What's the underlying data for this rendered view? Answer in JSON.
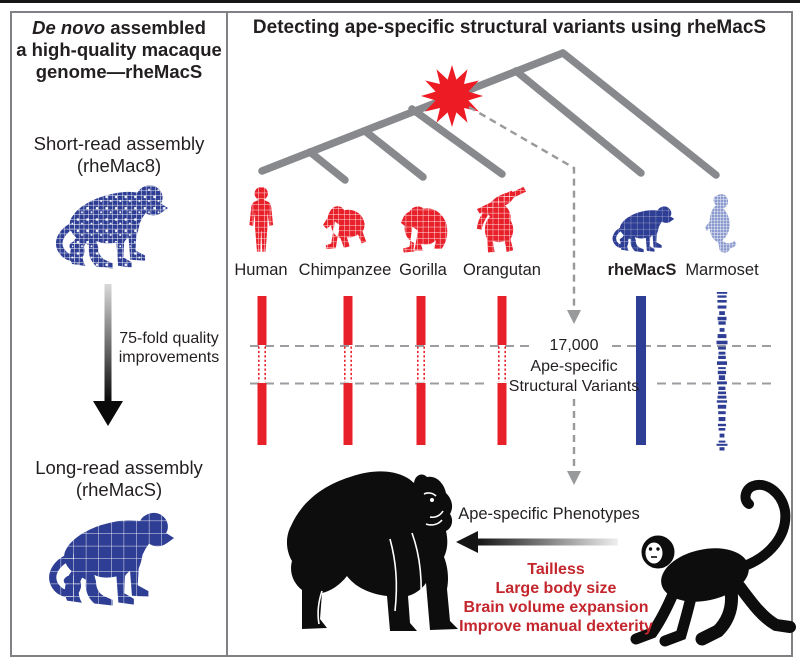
{
  "left_panel": {
    "title": {
      "italic_part": "De novo",
      "rest_line1": " assembled",
      "line2": "a high-quality macaque",
      "line3": "genome—rheMacS"
    },
    "short_read": {
      "line1": "Short-read assembly",
      "line2": "(rheMac8)"
    },
    "arrow_note": {
      "line1": "75-fold quality",
      "line2": "improvements"
    },
    "long_read": {
      "line1": "Long-read assembly",
      "line2": "(rheMacS)"
    }
  },
  "right_panel": {
    "title": "Detecting ape-specific structural variants using rheMacS",
    "species": [
      {
        "label": "Human"
      },
      {
        "label": "Chimpanzee"
      },
      {
        "label": "Gorilla"
      },
      {
        "label": "Orangutan"
      },
      {
        "label": "rheMacS"
      },
      {
        "label": "Marmoset"
      }
    ],
    "sv_annotation": {
      "line1": "17,000",
      "line2": "Ape-specific",
      "line3": "Structural Variants"
    },
    "phenotypes_title": "Ape-specific Phenotypes",
    "phenotypes": [
      "Tailless",
      "Large body size",
      "Brain volume expansion",
      "Improve manual dexterity"
    ]
  },
  "colors": {
    "ape_red": "#e8202a",
    "macaque_blue": "#2e3e94",
    "marmoset_blue": "#8b9ace",
    "tree_gray": "#87898c",
    "dashed_gray": "#97999b",
    "phenotype_red": "#c4262d",
    "silhouette_black": "#0d0d0d"
  }
}
